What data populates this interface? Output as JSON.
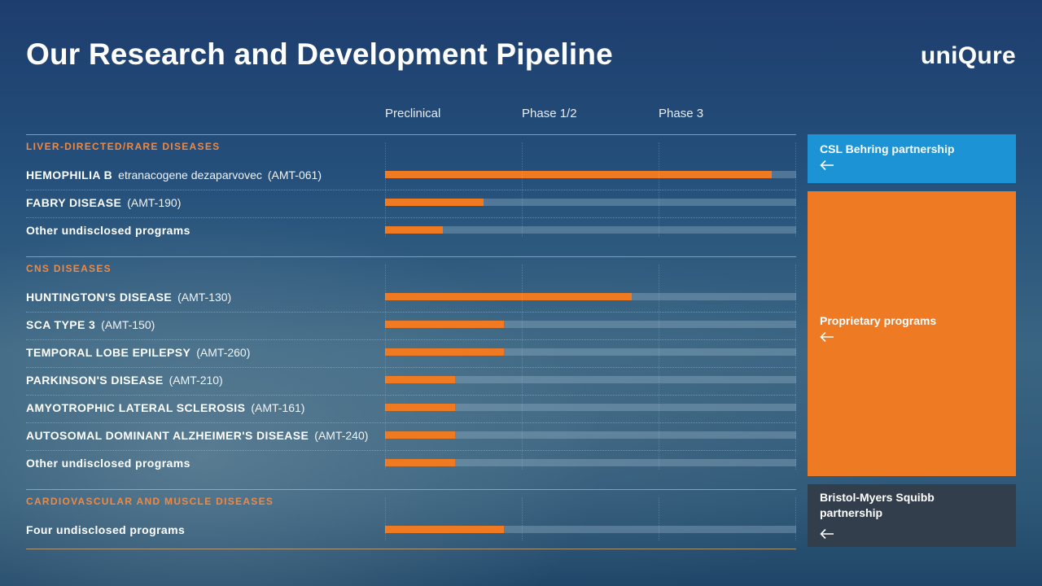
{
  "page": {
    "title": "Our Research and Development Pipeline",
    "logo": "uniQure"
  },
  "colors": {
    "progress": "#f07a22",
    "section_title": "#ee8a45",
    "csl_box": "#1c93d5",
    "proprietary_box": "#ee7a24",
    "bms_box": "#333e4d"
  },
  "chart_data": {
    "type": "bar",
    "orientation": "horizontal",
    "stages": [
      "Preclinical",
      "Phase 1/2",
      "Phase 3"
    ],
    "progress_unit": "fraction of full pipeline track (0–1)",
    "sections": [
      {
        "title": "LIVER-DIRECTED/RARE DISEASES",
        "rows": [
          {
            "name": "HEMOPHILIA B",
            "generic": "etranacogene dezaparvovec",
            "code": "(AMT-061)",
            "progress": 0.94
          },
          {
            "name": "FABRY DISEASE",
            "generic": "",
            "code": "(AMT-190)",
            "progress": 0.24
          },
          {
            "name": "Other undisclosed programs",
            "generic": "",
            "code": "",
            "progress": 0.14
          }
        ]
      },
      {
        "title": "CNS DISEASES",
        "rows": [
          {
            "name": "HUNTINGTON'S DISEASE",
            "generic": "",
            "code": "(AMT-130)",
            "progress": 0.6
          },
          {
            "name": "SCA TYPE 3",
            "generic": "",
            "code": "(AMT-150)",
            "progress": 0.29
          },
          {
            "name": "TEMPORAL LOBE EPILEPSY",
            "generic": "",
            "code": "(AMT-260)",
            "progress": 0.29
          },
          {
            "name": "PARKINSON'S DISEASE",
            "generic": "",
            "code": "(AMT-210)",
            "progress": 0.17
          },
          {
            "name": "AMYOTROPHIC LATERAL SCLEROSIS",
            "generic": "",
            "code": "(AMT-161)",
            "progress": 0.17
          },
          {
            "name": "AUTOSOMAL DOMINANT ALZHEIMER'S DISEASE",
            "generic": "",
            "code": "(AMT-240)",
            "progress": 0.17
          },
          {
            "name": "Other undisclosed programs",
            "generic": "",
            "code": "",
            "progress": 0.17
          }
        ]
      },
      {
        "title": "CARDIOVASCULAR AND MUSCLE DISEASES",
        "rows": [
          {
            "name": "Four undisclosed programs",
            "generic": "",
            "code": "",
            "progress": 0.29
          }
        ]
      }
    ]
  },
  "partnerships": [
    {
      "label": "CSL Behring partnership",
      "icon": "arrow-left-icon"
    },
    {
      "label": "Proprietary programs",
      "icon": "arrow-left-icon"
    },
    {
      "label": "Bristol-Myers Squibb partnership",
      "icon": "arrow-left-icon"
    }
  ]
}
